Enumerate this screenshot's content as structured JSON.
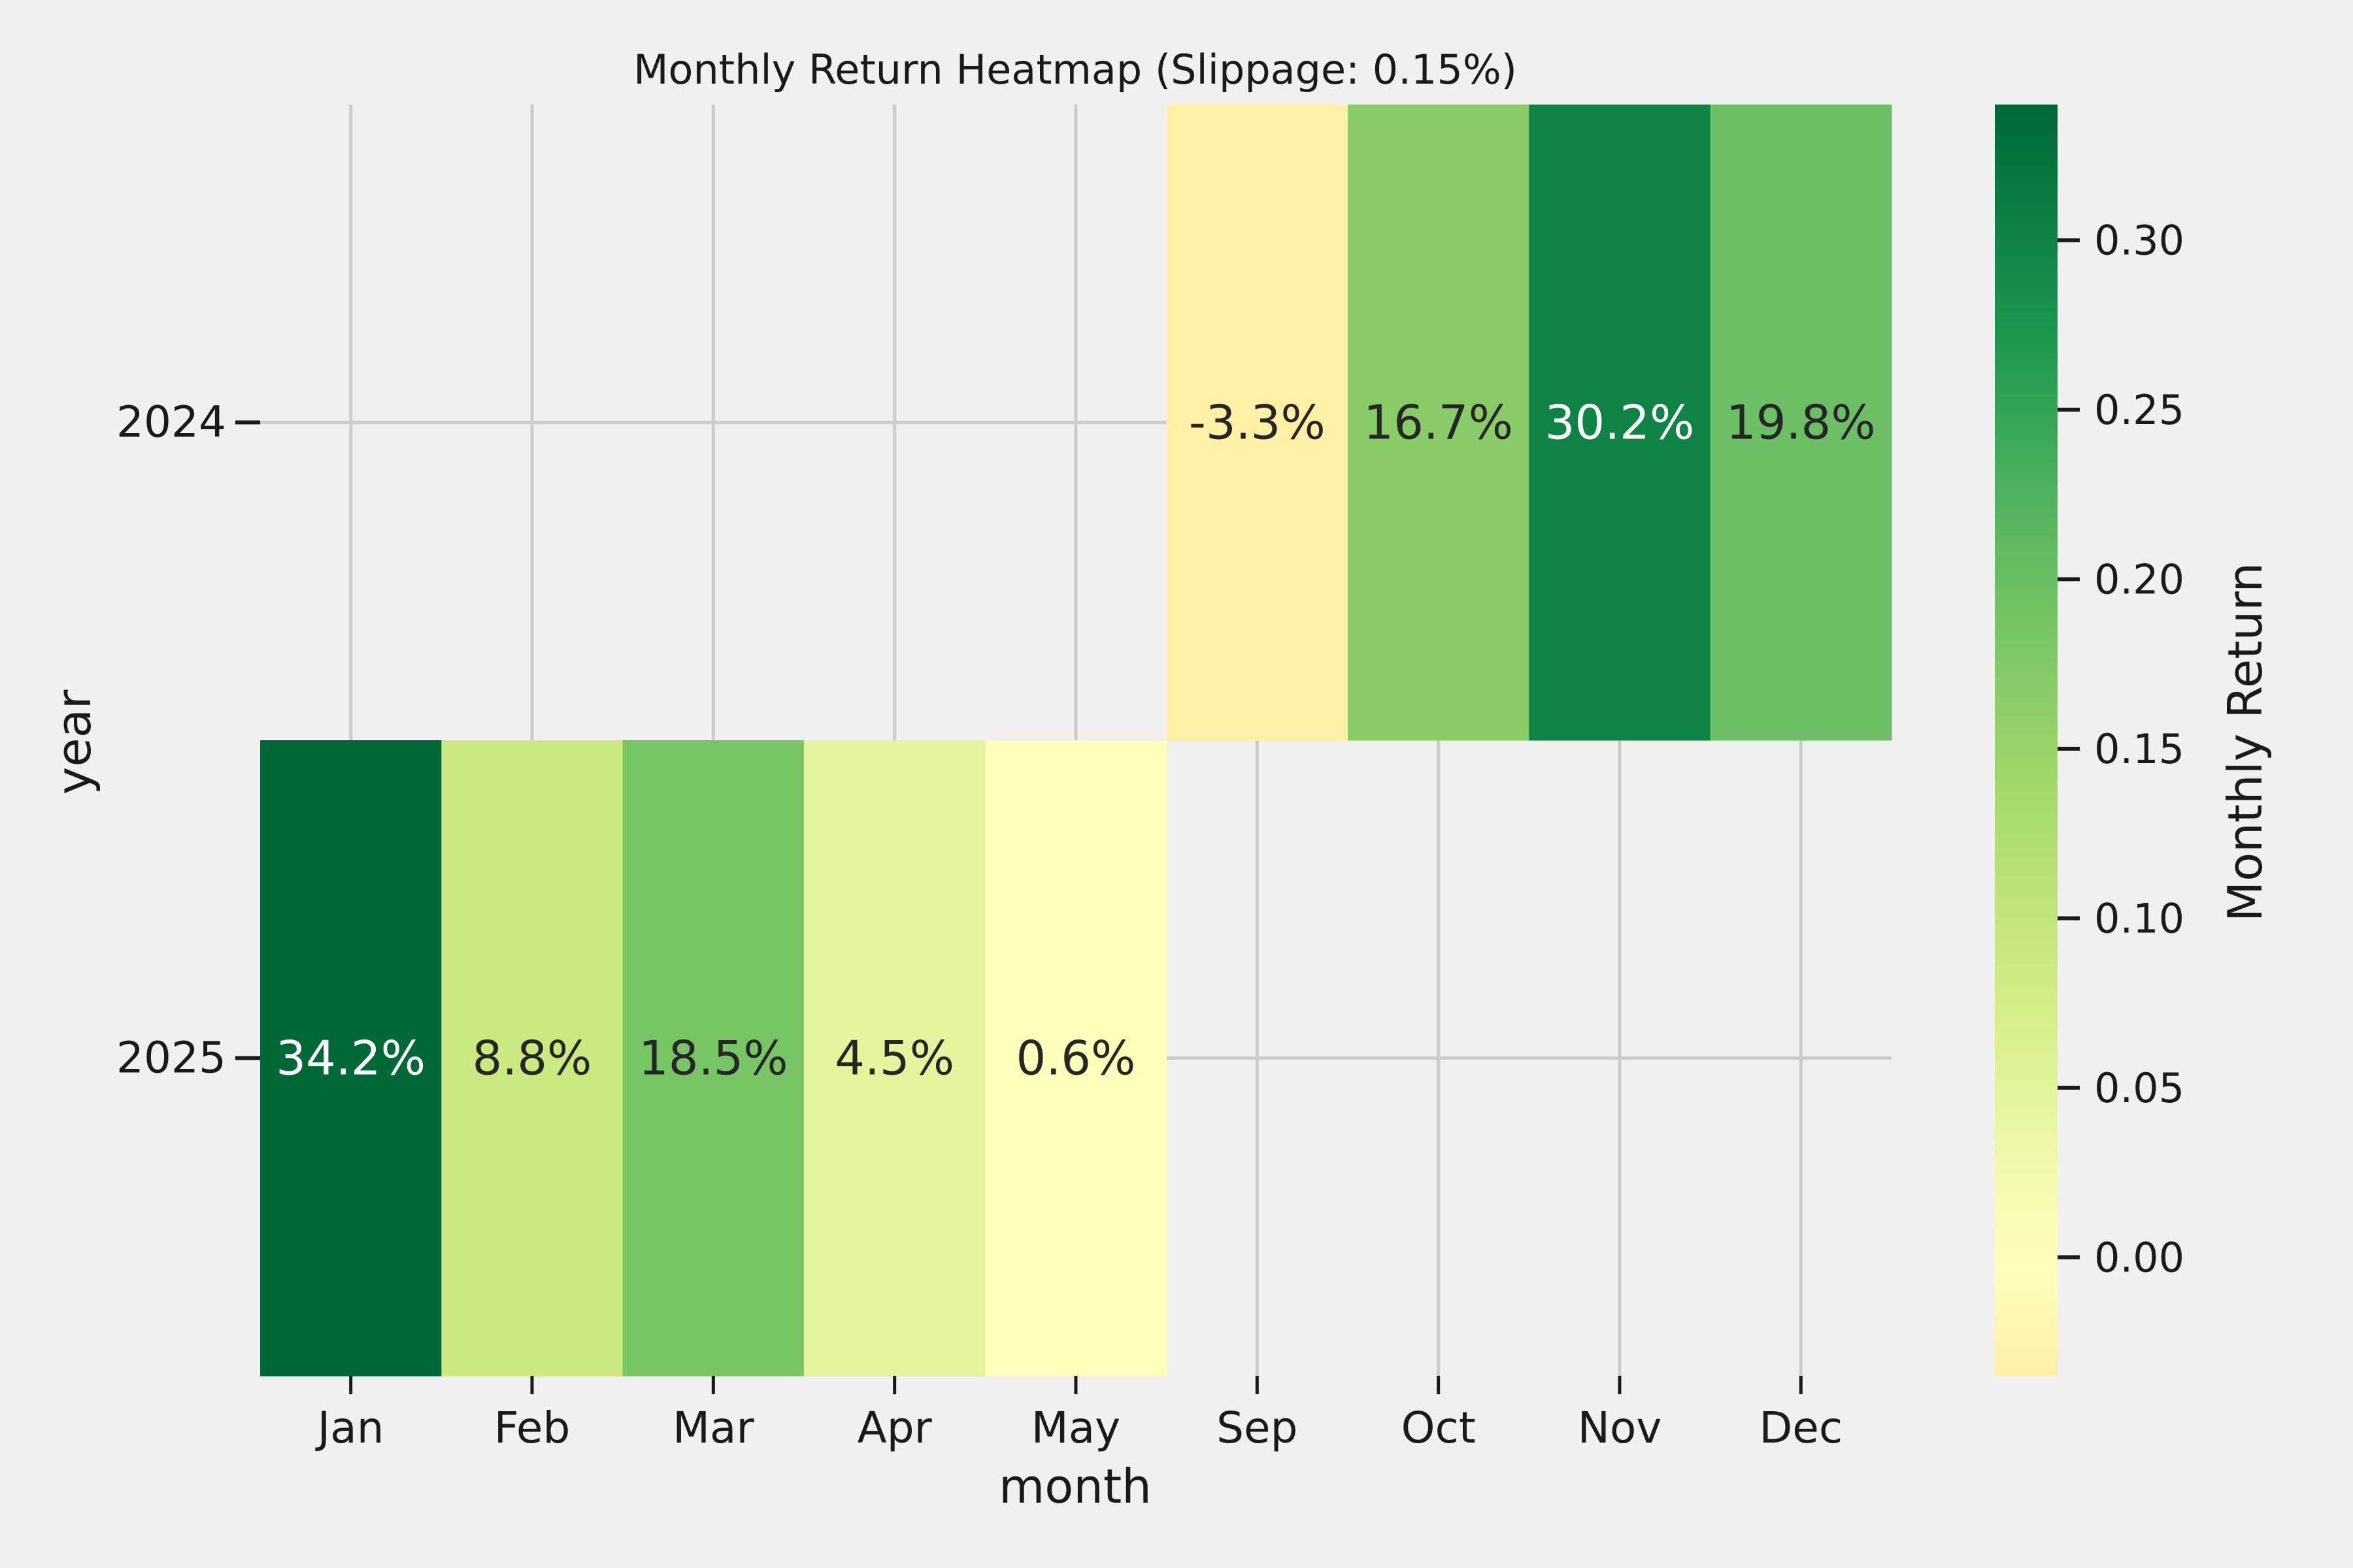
{
  "chart_data": {
    "type": "heatmap",
    "title": "Monthly Return Heatmap (Slippage: 0.15%)",
    "xlabel": "month",
    "ylabel": "year",
    "x_categories": [
      "Jan",
      "Feb",
      "Mar",
      "Apr",
      "May",
      "Sep",
      "Oct",
      "Nov",
      "Dec"
    ],
    "y_categories": [
      "2024",
      "2025"
    ],
    "values": [
      [
        null,
        null,
        null,
        null,
        null,
        -0.033,
        0.167,
        0.302,
        0.198
      ],
      [
        0.342,
        0.088,
        0.185,
        0.045,
        0.006,
        null,
        null,
        null,
        null
      ]
    ],
    "cell_labels": [
      [
        null,
        null,
        null,
        null,
        null,
        "-3.3%",
        "16.7%",
        "30.2%",
        "19.8%"
      ],
      [
        "34.2%",
        "8.8%",
        "18.5%",
        "4.5%",
        "0.6%",
        null,
        null,
        null,
        null
      ]
    ],
    "colorscale": "RdYlGn",
    "colorbar": {
      "label": "Monthly Return",
      "vmin": -0.035,
      "vmax": 0.34,
      "ticks": [
        0.0,
        0.05,
        0.1,
        0.15,
        0.2,
        0.25,
        0.3
      ],
      "tick_labels": [
        "0.00",
        "0.05",
        "0.10",
        "0.15",
        "0.20",
        "0.25",
        "0.30"
      ]
    },
    "grid": true,
    "colors": {
      "background": "#f0f0f0",
      "grid": "#cbcbcb",
      "text_dark": "#262626",
      "text_light": "#ffffff"
    }
  }
}
